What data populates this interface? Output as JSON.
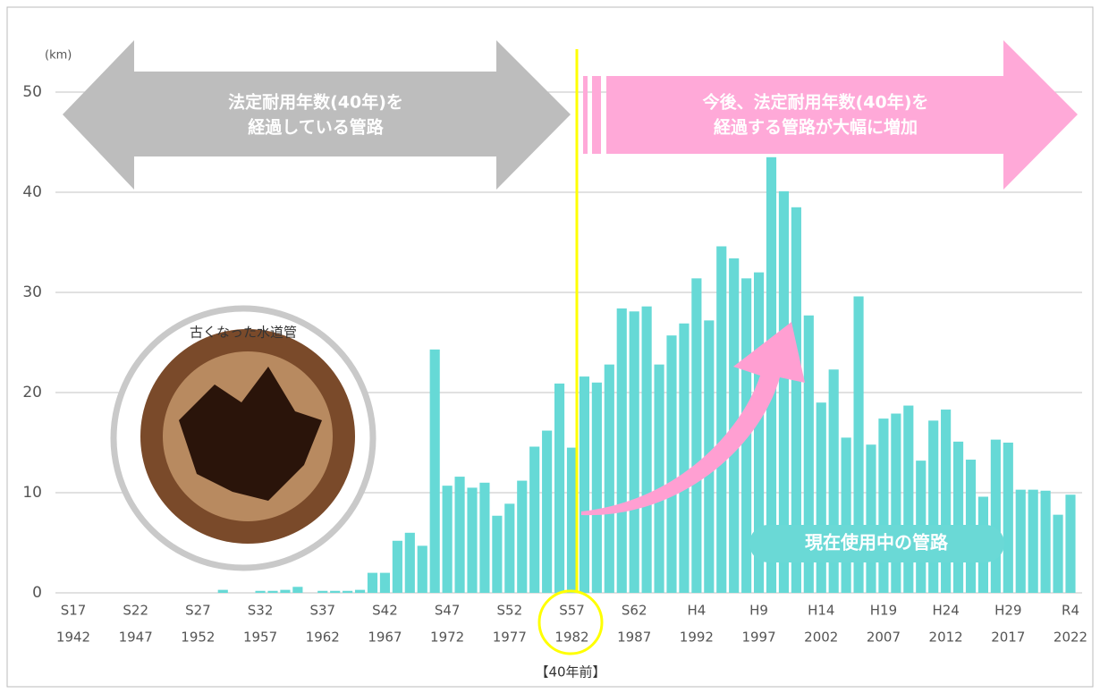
{
  "chart_data": {
    "type": "bar",
    "y_unit": "(km)",
    "x": [
      1942,
      1943,
      1944,
      1945,
      1946,
      1947,
      1948,
      1949,
      1950,
      1951,
      1952,
      1953,
      1954,
      1955,
      1956,
      1957,
      1958,
      1959,
      1960,
      1961,
      1962,
      1963,
      1964,
      1965,
      1966,
      1967,
      1968,
      1969,
      1970,
      1971,
      1972,
      1973,
      1974,
      1975,
      1976,
      1977,
      1978,
      1979,
      1980,
      1981,
      1982,
      1983,
      1984,
      1985,
      1986,
      1987,
      1988,
      1989,
      1990,
      1991,
      1992,
      1993,
      1994,
      1995,
      1996,
      1997,
      1998,
      1999,
      2000,
      2001,
      2002,
      2003,
      2004,
      2005,
      2006,
      2007,
      2008,
      2009,
      2010,
      2011,
      2012,
      2013,
      2014,
      2015,
      2016,
      2017,
      2018,
      2019,
      2020,
      2021,
      2022
    ],
    "values": [
      0,
      0,
      0,
      0,
      0,
      0,
      0,
      0,
      0,
      0,
      0,
      0,
      0.3,
      0,
      0,
      0.2,
      0.2,
      0.3,
      0.6,
      0,
      0.2,
      0.2,
      0.2,
      0.3,
      2.0,
      2.0,
      5.2,
      6.0,
      4.7,
      24.3,
      10.7,
      11.6,
      10.5,
      11.0,
      7.7,
      8.9,
      11.2,
      14.6,
      16.2,
      20.9,
      14.5,
      21.6,
      21.0,
      22.8,
      28.4,
      28.1,
      28.6,
      22.8,
      25.7,
      26.9,
      31.4,
      27.2,
      34.6,
      33.4,
      31.4,
      32.0,
      43.5,
      40.1,
      38.5,
      27.7,
      19.0,
      22.3,
      15.5,
      29.6,
      14.8,
      17.4,
      17.9,
      18.7,
      13.2,
      17.2,
      18.3,
      15.1,
      13.3,
      9.6,
      15.3,
      15.0,
      10.3,
      10.3,
      10.2,
      7.8,
      9.8
    ],
    "color": "#66d9d6",
    "xlim": [
      1942,
      2022
    ],
    "xticks": [
      1942,
      1947,
      1952,
      1957,
      1962,
      1967,
      1972,
      1977,
      1982,
      1987,
      1992,
      1997,
      2002,
      2007,
      2012,
      2017,
      2022
    ],
    "xtick_eras": [
      "S17",
      "S22",
      "S27",
      "S32",
      "S37",
      "S42",
      "S47",
      "S52",
      "S57",
      "S62",
      "H4",
      "H9",
      "H14",
      "H19",
      "H24",
      "H29",
      "R4"
    ],
    "ylim": [
      0,
      50
    ],
    "yticks": [
      0,
      10,
      20,
      30,
      40,
      50
    ],
    "grid": true,
    "annotations": {
      "past_arrow": [
        "法定耐用年数(40年)を",
        "経過している管路"
      ],
      "future_arrow": [
        "今後、法定耐用年数(40年)を",
        "経過する管路が大幅に増加"
      ],
      "photo_caption": "古くなった水道管",
      "current_label": "現在使用中の管路",
      "forty_years_ago": "【40年前】"
    }
  }
}
